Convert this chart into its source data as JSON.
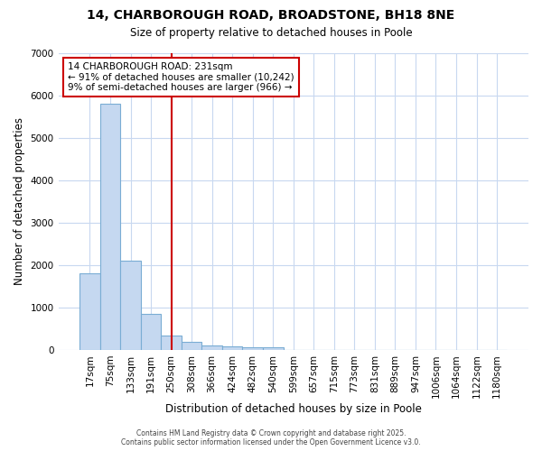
{
  "title1": "14, CHARBOROUGH ROAD, BROADSTONE, BH18 8NE",
  "title2": "Size of property relative to detached houses in Poole",
  "xlabel": "Distribution of detached houses by size in Poole",
  "ylabel": "Number of detached properties",
  "categories": [
    "17sqm",
    "75sqm",
    "133sqm",
    "191sqm",
    "250sqm",
    "308sqm",
    "366sqm",
    "424sqm",
    "482sqm",
    "540sqm",
    "599sqm",
    "657sqm",
    "715sqm",
    "773sqm",
    "831sqm",
    "889sqm",
    "947sqm",
    "1006sqm",
    "1064sqm",
    "1122sqm",
    "1180sqm"
  ],
  "bar_values": [
    1800,
    5800,
    2100,
    850,
    330,
    180,
    100,
    80,
    50,
    60,
    0,
    0,
    0,
    0,
    0,
    0,
    0,
    0,
    0,
    0,
    0
  ],
  "bar_color": "#c5d8f0",
  "bar_edge_color": "#7aadd4",
  "vline_x_index": 4,
  "vline_color": "#cc0000",
  "annotation_title": "14 CHARBOROUGH ROAD: 231sqm",
  "annotation_line1": "← 91% of detached houses are smaller (10,242)",
  "annotation_line2": "9% of semi-detached houses are larger (966) →",
  "ylim": [
    0,
    7000
  ],
  "yticks": [
    0,
    1000,
    2000,
    3000,
    4000,
    5000,
    6000,
    7000
  ],
  "bg_color": "#ffffff",
  "grid_color": "#c8d8f0",
  "footer1": "Contains HM Land Registry data © Crown copyright and database right 2025.",
  "footer2": "Contains public sector information licensed under the Open Government Licence v3.0."
}
